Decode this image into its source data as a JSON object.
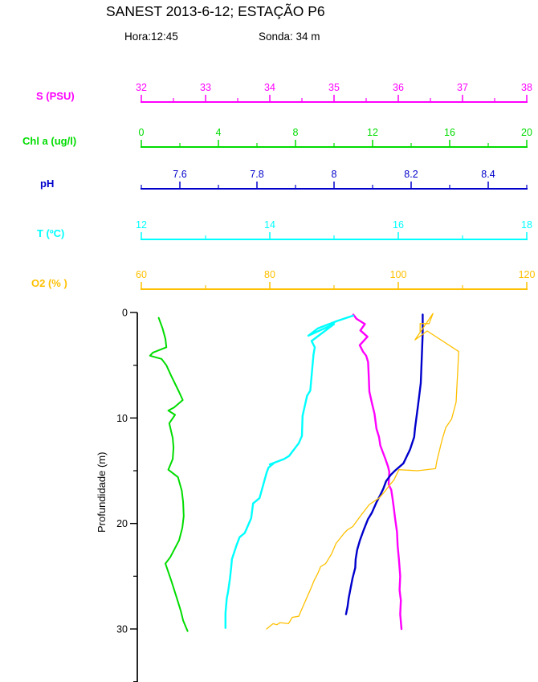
{
  "header": {
    "title": "SANEST 2013-6-12; ESTAÇÃO P6",
    "hora": "Hora:12:45",
    "sonda": "Sonda: 34 m"
  },
  "depth_axis": {
    "label": "Profundidade (m)",
    "min": 0,
    "max": 35,
    "major_ticks": [
      0,
      10,
      20,
      30
    ],
    "minor_ticks": [
      5,
      15,
      25,
      35
    ]
  },
  "chart_data": {
    "type": "line",
    "title": "SANEST 2013-6-12; ESTAÇÃO P6",
    "subtitle": "Hora:12:45  Sonda: 34 m",
    "orientation": "vertical-depth-profile",
    "ylabel": "Profundidade (m)",
    "ylim": [
      0,
      35
    ],
    "grid": false,
    "legend": "none",
    "axes": [
      {
        "id": "S",
        "label": "S (PSU)",
        "color": "#FF00FF",
        "min": 32,
        "max": 38,
        "major_ticks": [
          32,
          33,
          34,
          35,
          36,
          37,
          38
        ],
        "minor_ticks": [
          32.5,
          33.5,
          34.5,
          35.5,
          36.5,
          37.5
        ]
      },
      {
        "id": "Chl",
        "label": "Chl a (ug/l)",
        "color": "#00DC00",
        "min": 0,
        "max": 20,
        "major_ticks": [
          0,
          4,
          8,
          12,
          16,
          20
        ],
        "minor_ticks": [
          2,
          6,
          10,
          14,
          18
        ]
      },
      {
        "id": "pH",
        "label": "pH",
        "color": "#0000CC",
        "min": 7.5,
        "max": 8.5,
        "major_ticks": [
          7.6,
          7.8,
          8,
          8.2,
          8.4
        ],
        "minor_ticks": [
          7.5,
          7.7,
          7.9,
          8.1,
          8.3,
          8.5
        ]
      },
      {
        "id": "T",
        "label": "T (ºC)",
        "color": "#00FFFF",
        "min": 12,
        "max": 18,
        "major_ticks": [
          12,
          14,
          16,
          18
        ],
        "minor_ticks": [
          13,
          15,
          17
        ]
      },
      {
        "id": "O2",
        "label": "O2 (% )",
        "color": "#FFC000",
        "min": 60,
        "max": 120,
        "major_ticks": [
          60,
          80,
          100,
          120
        ],
        "minor_ticks": [
          70,
          90,
          110
        ]
      }
    ],
    "series": [
      {
        "axis": "S",
        "name": "S (PSU)",
        "points_format": [
          "value",
          "depth_m"
        ],
        "points": [
          [
            35.3,
            0.2
          ],
          [
            35.35,
            0.6
          ],
          [
            35.48,
            1.1
          ],
          [
            35.41,
            1.7
          ],
          [
            35.52,
            2.3
          ],
          [
            35.4,
            3.1
          ],
          [
            35.45,
            3.7
          ],
          [
            35.5,
            4.1
          ],
          [
            35.53,
            4.7
          ],
          [
            35.54,
            6.0
          ],
          [
            35.55,
            7.5
          ],
          [
            35.59,
            8.6
          ],
          [
            35.63,
            9.6
          ],
          [
            35.66,
            11.0
          ],
          [
            35.7,
            11.8
          ],
          [
            35.72,
            12.6
          ],
          [
            35.8,
            13.9
          ],
          [
            35.84,
            14.6
          ],
          [
            35.86,
            15.1
          ],
          [
            35.85,
            16.3
          ],
          [
            35.89,
            16.8
          ],
          [
            35.91,
            17.6
          ],
          [
            35.93,
            18.5
          ],
          [
            35.95,
            19.5
          ],
          [
            35.98,
            20.8
          ],
          [
            35.99,
            22.1
          ],
          [
            36.01,
            23.4
          ],
          [
            36.03,
            25.0
          ],
          [
            36.02,
            26.3
          ],
          [
            36.04,
            27.3
          ],
          [
            36.03,
            28.6
          ],
          [
            36.05,
            30.0
          ]
        ]
      },
      {
        "axis": "Chl",
        "name": "Chl a (ug/l)",
        "points_format": [
          "value",
          "depth_m"
        ],
        "points": [
          [
            0.9,
            0.5
          ],
          [
            1.1,
            1.5
          ],
          [
            1.25,
            2.5
          ],
          [
            1.3,
            3.3
          ],
          [
            0.6,
            3.8
          ],
          [
            0.45,
            4.1
          ],
          [
            1.05,
            4.4
          ],
          [
            1.3,
            5.0
          ],
          [
            1.55,
            6.0
          ],
          [
            1.95,
            7.5
          ],
          [
            2.15,
            8.3
          ],
          [
            1.7,
            9.0
          ],
          [
            1.4,
            9.3
          ],
          [
            1.75,
            9.7
          ],
          [
            1.45,
            10.5
          ],
          [
            1.63,
            11.9
          ],
          [
            1.67,
            12.8
          ],
          [
            1.63,
            13.9
          ],
          [
            1.4,
            14.9
          ],
          [
            1.9,
            15.6
          ],
          [
            2.1,
            16.9
          ],
          [
            2.17,
            18.0
          ],
          [
            2.2,
            19.3
          ],
          [
            2.13,
            20.4
          ],
          [
            1.96,
            21.6
          ],
          [
            1.5,
            23.2
          ],
          [
            1.25,
            23.8
          ],
          [
            1.55,
            25.4
          ],
          [
            1.83,
            27.0
          ],
          [
            2.05,
            28.3
          ],
          [
            2.17,
            29.2
          ],
          [
            2.4,
            30.2
          ]
        ]
      },
      {
        "axis": "pH",
        "name": "pH",
        "points_format": [
          "value",
          "depth_m"
        ],
        "points": [
          [
            8.23,
            0.2
          ],
          [
            8.23,
            2.0
          ],
          [
            8.228,
            4.0
          ],
          [
            8.225,
            6.7
          ],
          [
            8.218,
            8.8
          ],
          [
            8.21,
            11.0
          ],
          [
            8.208,
            11.8
          ],
          [
            8.197,
            13.0
          ],
          [
            8.18,
            14.3
          ],
          [
            8.158,
            15.0
          ],
          [
            8.147,
            15.4
          ],
          [
            8.135,
            16.0
          ],
          [
            8.128,
            16.7
          ],
          [
            8.12,
            17.3
          ],
          [
            8.11,
            18.0
          ],
          [
            8.098,
            19.0
          ],
          [
            8.088,
            19.6
          ],
          [
            8.077,
            20.6
          ],
          [
            8.067,
            21.6
          ],
          [
            8.06,
            22.5
          ],
          [
            8.056,
            23.4
          ],
          [
            8.055,
            24.2
          ],
          [
            8.048,
            25.2
          ],
          [
            8.042,
            26.3
          ],
          [
            8.038,
            27.1
          ],
          [
            8.035,
            27.9
          ],
          [
            8.031,
            28.6
          ]
        ]
      },
      {
        "axis": "T",
        "name": "T (ºC)",
        "points_format": [
          "value",
          "depth_m"
        ],
        "points": [
          [
            15.3,
            0.3
          ],
          [
            15.05,
            0.8
          ],
          [
            14.75,
            1.5
          ],
          [
            14.6,
            2.2
          ],
          [
            15.0,
            1.1
          ],
          [
            14.65,
            2.7
          ],
          [
            14.7,
            3.3
          ],
          [
            14.68,
            4.0
          ],
          [
            14.63,
            7.4
          ],
          [
            14.58,
            7.9
          ],
          [
            14.51,
            9.8
          ],
          [
            14.5,
            11.7
          ],
          [
            14.45,
            12.4
          ],
          [
            14.3,
            13.6
          ],
          [
            14.22,
            13.9
          ],
          [
            14.0,
            14.4
          ],
          [
            14.06,
            14.3
          ],
          [
            13.98,
            14.7
          ],
          [
            13.95,
            15.2
          ],
          [
            13.84,
            17.6
          ],
          [
            13.74,
            18.1
          ],
          [
            13.71,
            19.5
          ],
          [
            13.61,
            20.9
          ],
          [
            13.53,
            21.3
          ],
          [
            13.48,
            22.1
          ],
          [
            13.41,
            23.4
          ],
          [
            13.4,
            24.1
          ],
          [
            13.38,
            25.2
          ],
          [
            13.35,
            26.5
          ],
          [
            13.33,
            27.1
          ],
          [
            13.31,
            28.5
          ],
          [
            13.31,
            29.9
          ]
        ]
      },
      {
        "axis": "O2",
        "name": "O2 (% )",
        "points_format": [
          "value",
          "depth_m"
        ],
        "points": [
          [
            103.4,
            1.8
          ],
          [
            103.4,
            1.05
          ],
          [
            104.8,
            1.05
          ],
          [
            105.4,
            0.1
          ],
          [
            102.6,
            2.6
          ],
          [
            104.5,
            1.75
          ],
          [
            109.4,
            3.7
          ],
          [
            109.3,
            5.0
          ],
          [
            109.0,
            8.5
          ],
          [
            108.3,
            10.1
          ],
          [
            107.4,
            10.9
          ],
          [
            106.9,
            11.9
          ],
          [
            106.6,
            12.6
          ],
          [
            106.0,
            14.1
          ],
          [
            105.8,
            14.8
          ],
          [
            103.0,
            15.0
          ],
          [
            100.1,
            14.9
          ],
          [
            99.3,
            15.9
          ],
          [
            98.6,
            16.4
          ],
          [
            98.0,
            16.9
          ],
          [
            97.0,
            17.6
          ],
          [
            95.5,
            18.2
          ],
          [
            94.1,
            19.3
          ],
          [
            92.9,
            20.3
          ],
          [
            92.1,
            20.6
          ],
          [
            91.6,
            20.9
          ],
          [
            90.3,
            21.9
          ],
          [
            89.6,
            22.9
          ],
          [
            88.7,
            23.8
          ],
          [
            87.9,
            24.1
          ],
          [
            87.5,
            24.7
          ],
          [
            86.9,
            25.4
          ],
          [
            86.3,
            26.3
          ],
          [
            86.0,
            26.7
          ],
          [
            85.0,
            28.1
          ],
          [
            84.5,
            28.8
          ],
          [
            83.5,
            28.9
          ],
          [
            82.9,
            29.5
          ],
          [
            81.6,
            29.4
          ],
          [
            81.1,
            29.6
          ],
          [
            80.5,
            29.5
          ],
          [
            79.5,
            30.0
          ]
        ]
      }
    ]
  }
}
